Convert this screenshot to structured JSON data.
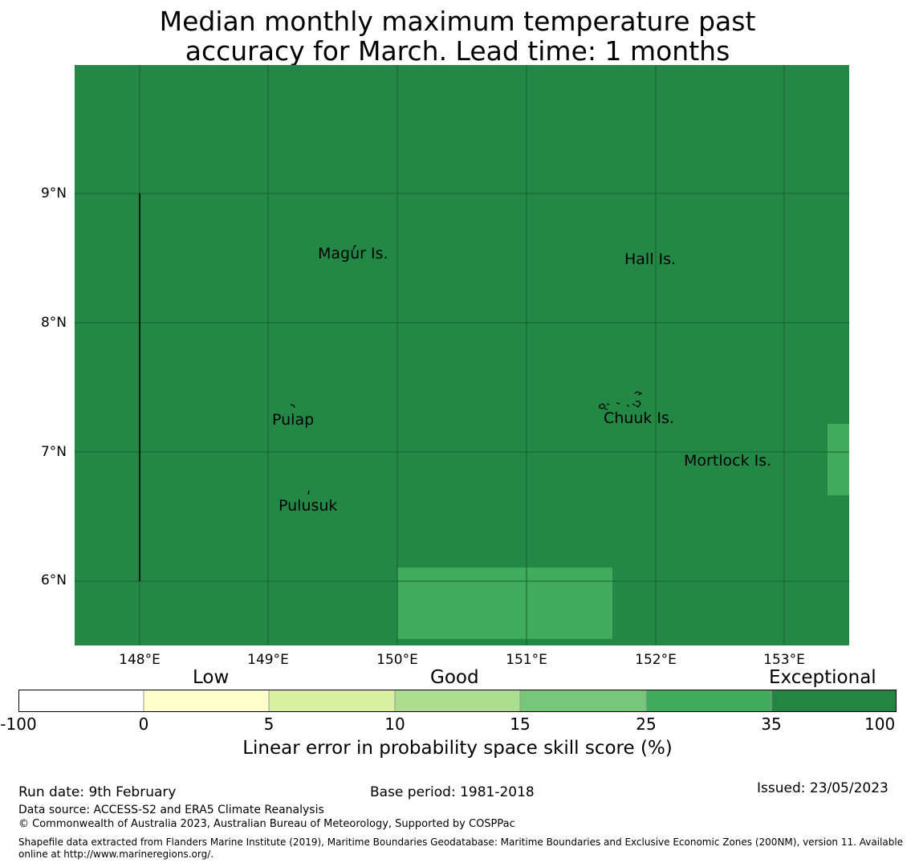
{
  "title": {
    "line1": "Median monthly maximum temperature past",
    "line2": "accuracy for March. Lead time: 1 months"
  },
  "map": {
    "background_color": "#238845",
    "patch_color": "#41ab5d",
    "lat_ticks": [
      "9°N",
      "8°N",
      "7°N",
      "6°N"
    ],
    "lon_ticks": [
      "148°E",
      "149°E",
      "150°E",
      "151°E",
      "152°E",
      "153°E"
    ],
    "places": {
      "magur": "Magur Is.",
      "hall": "Hall Is.",
      "pulap": "Pulap",
      "chuuk": "Chuuk Is.",
      "mortlock": "Mortlock Is.",
      "pulusuk": "Pulusuk"
    }
  },
  "colorbar": {
    "categories": {
      "low": "Low",
      "good": "Good",
      "exceptional": "Exceptional"
    },
    "ticks": [
      "-100",
      "0",
      "5",
      "10",
      "15",
      "25",
      "35",
      "100"
    ],
    "colors": [
      "#ffffff",
      "#ffffcc",
      "#d9f0a3",
      "#addd8e",
      "#78c679",
      "#41ab5d",
      "#238443"
    ],
    "label": "Linear error in probability space skill score (%)"
  },
  "footer": {
    "run_date": "Run date: 9th February",
    "base_period": "Base period: 1981-2018",
    "issued": "Issued: 23/05/2023",
    "data_source": "Data source: ACCESS-S2 and ERA5 Climate Reanalysis",
    "copyright": "© Commonwealth of Australia 2023, Australian Bureau of Meteorology, Supported by COSPPac",
    "shapefile_line1": "Shapefile data extracted from Flanders Marine Institute (2019), Maritime Boundaries Geodatabase: Maritime Boundaries and Exclusive Economic Zones (200NM), version 11. Available",
    "shapefile_line2": "online at http://www.marineregions.org/."
  }
}
